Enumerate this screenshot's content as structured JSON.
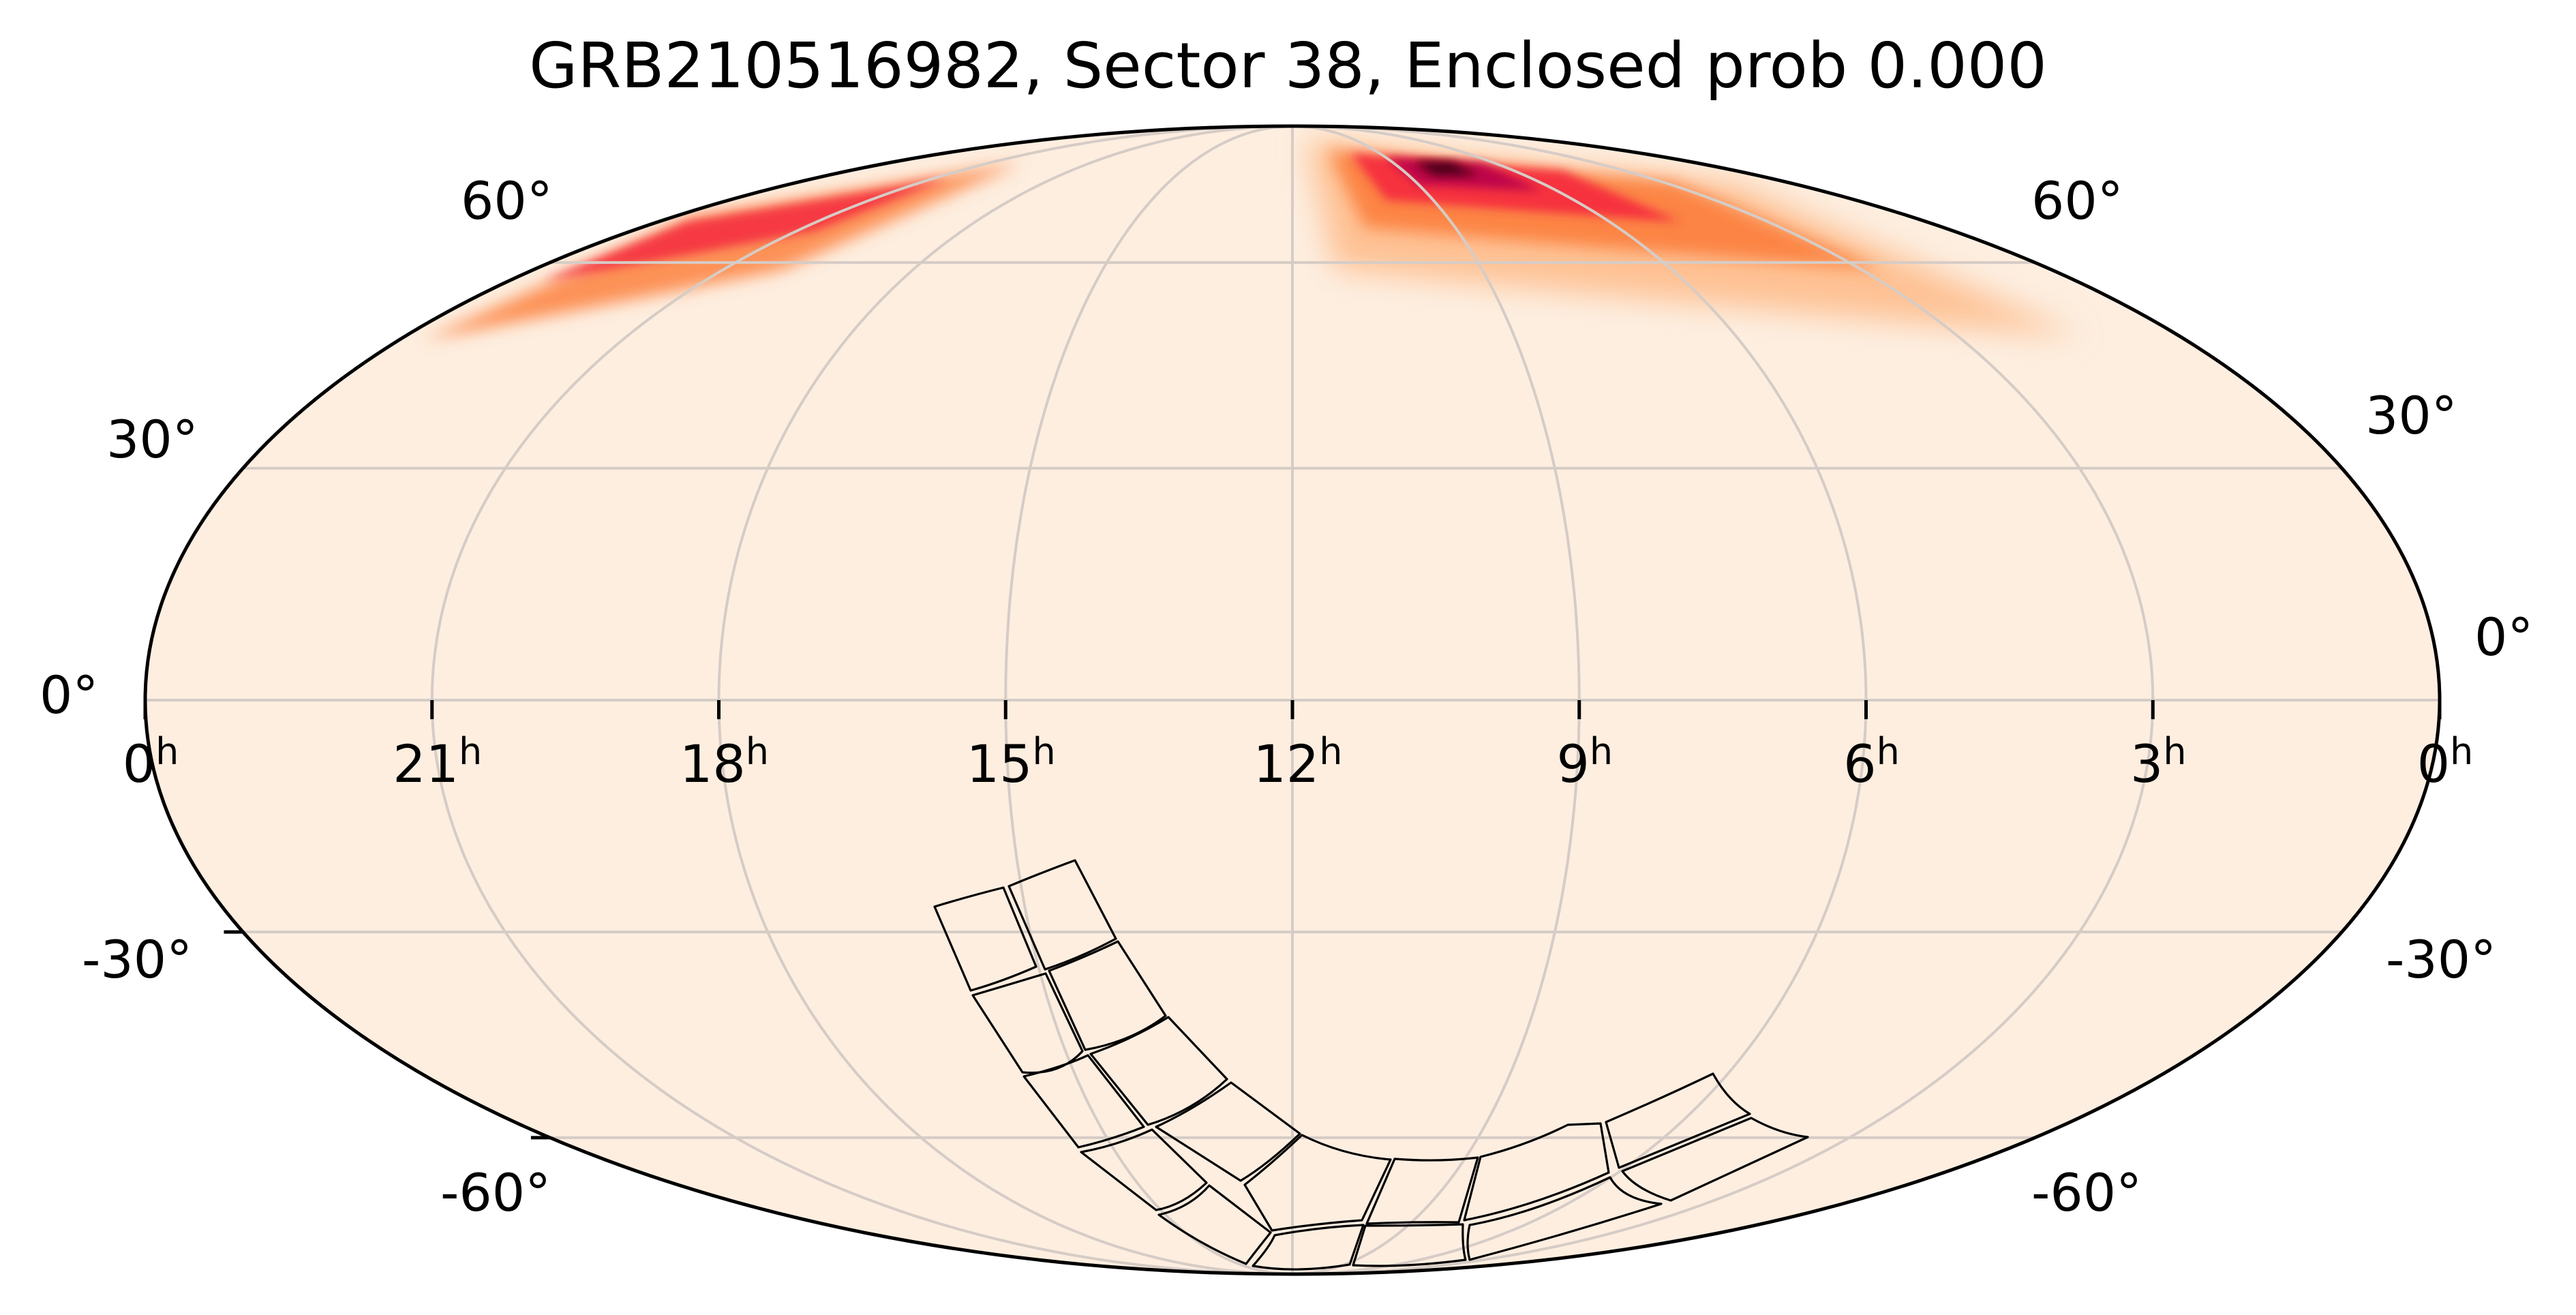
{
  "chart_data": {
    "type": "heatmap",
    "projection": "mollweide",
    "title": "GRB210516982, Sector 38, Enclosed prob 0.000",
    "xlabel": "",
    "ylabel": "",
    "grid": true,
    "x_ticks": [
      "0h",
      "21h",
      "18h",
      "15h",
      "12h",
      "9h",
      "6h",
      "3h",
      "0h"
    ],
    "x_tick_ra_deg": [
      360,
      315,
      270,
      225,
      180,
      135,
      90,
      45,
      0
    ],
    "y_ticks_left": [
      "60°",
      "30°",
      "0°",
      "-30°",
      "-60°"
    ],
    "y_ticks_right": [
      "60°",
      "30°",
      "0°",
      "-30°",
      "-60°"
    ],
    "y_tick_dec_deg": [
      60,
      30,
      0,
      -30,
      -60
    ],
    "colormap": "magma_r-like (cream to orange to red to black)",
    "colors": {
      "background": "#fdeee0",
      "low": "#fdeee0",
      "mid": "#fc7a35",
      "high": "#e8003f",
      "peak": "#3b0011",
      "grid": "#d6ccc6",
      "outline": "#000000"
    },
    "probability_hotspot": {
      "description": "elongated high-probability band along the northern rim, peak near RA ~7-8h, Dec ~+70°",
      "peak_pixel": [
        2531,
        267
      ]
    },
    "enclosed_probability": 0.0,
    "sector": 38,
    "event": "GRB210516982",
    "footprint": {
      "description": "TESS Sector 38 camera/CCD footprint: 4 cameras x 4 CCDs, arced across southern sky from ~15h to ~7h",
      "outline_color": "#000000"
    }
  },
  "labels": {
    "title": "GRB210516982, Sector 38, Enclosed prob 0.000",
    "ra": [
      {
        "num": "0",
        "sup": "h"
      },
      {
        "num": "21",
        "sup": "h"
      },
      {
        "num": "18",
        "sup": "h"
      },
      {
        "num": "15",
        "sup": "h"
      },
      {
        "num": "12",
        "sup": "h"
      },
      {
        "num": "9",
        "sup": "h"
      },
      {
        "num": "6",
        "sup": "h"
      },
      {
        "num": "3",
        "sup": "h"
      },
      {
        "num": "0",
        "sup": "h"
      }
    ],
    "dec_left": [
      "60°",
      "30°",
      "0°",
      "-30°",
      "-60°"
    ],
    "dec_right": [
      "60°",
      "30°",
      "0°",
      "-30°",
      "-60°"
    ]
  }
}
